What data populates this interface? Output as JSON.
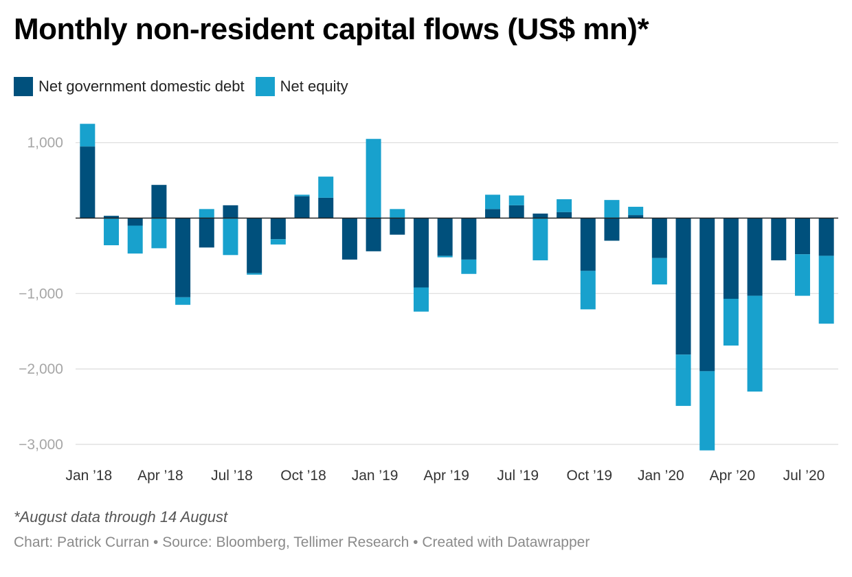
{
  "chart_data": {
    "type": "bar",
    "stacked": true,
    "title": "Monthly non-resident capital flows (US$ mn)*",
    "categories": [
      "Jan 2018",
      "Feb 2018",
      "Mar 2018",
      "Apr 2018",
      "May 2018",
      "Jun 2018",
      "Jul 2018",
      "Aug 2018",
      "Sep 2018",
      "Oct 2018",
      "Nov 2018",
      "Dec 2018",
      "Jan 2019",
      "Feb 2019",
      "Mar 2019",
      "Apr 2019",
      "May 2019",
      "Jun 2019",
      "Jul 2019",
      "Aug 2019",
      "Sep 2019",
      "Oct 2019",
      "Nov 2019",
      "Dec 2019",
      "Jan 2020",
      "Feb 2020",
      "Mar 2020",
      "Apr 2020",
      "May 2020",
      "Jun 2020",
      "Jul 2020",
      "Aug 2020"
    ],
    "series": [
      {
        "name": "Net government domestic debt",
        "color": "#00507c",
        "values": [
          950,
          30,
          -100,
          440,
          -1050,
          -390,
          170,
          -730,
          -280,
          290,
          270,
          -550,
          -440,
          -220,
          -920,
          -500,
          -550,
          120,
          170,
          60,
          80,
          -700,
          -300,
          40,
          -530,
          -1810,
          -2030,
          -1070,
          -1030,
          -560,
          -480,
          -500
        ]
      },
      {
        "name": "Net equity",
        "color": "#18a1cd",
        "values": [
          300,
          -360,
          -370,
          -400,
          -100,
          120,
          -490,
          -20,
          -70,
          20,
          280,
          0,
          1050,
          120,
          -320,
          -20,
          -190,
          190,
          130,
          -560,
          170,
          -510,
          240,
          110,
          -350,
          -680,
          -1050,
          -620,
          -1270,
          0,
          -550,
          -900
        ]
      }
    ],
    "xtick_labels": [
      "Jan ’18",
      "Apr ’18",
      "Jul ’18",
      "Oct ’18",
      "Jan ’19",
      "Apr ’19",
      "Jul ’19",
      "Oct ’19",
      "Jan ’20",
      "Apr ’20",
      "Jul ’20"
    ],
    "xtick_every": 3,
    "ytick_values": [
      1000,
      0,
      -1000,
      -2000,
      -3000
    ],
    "ytick_labels": [
      "1,000",
      "",
      "−1,000",
      "−2,000",
      "−3,000"
    ],
    "ylim": [
      -3200,
      1300
    ],
    "xlabel": "",
    "ylabel": "",
    "grid": true,
    "legend_position": "top-left"
  },
  "footer": {
    "note": "*August data through 14 August",
    "credit": "Chart: Patrick Curran • Source: Bloomberg, Tellimer Research • Created with Datawrapper"
  }
}
